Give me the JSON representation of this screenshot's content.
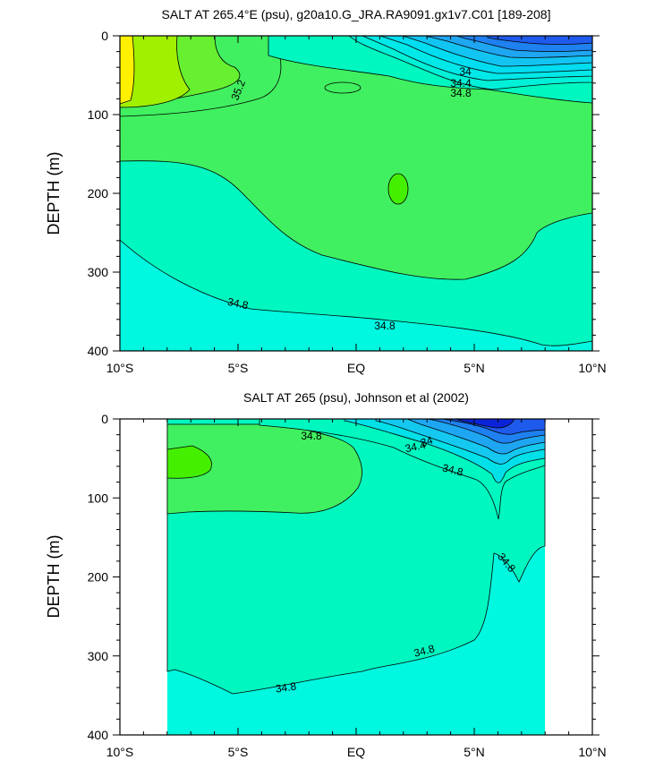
{
  "chart_data": [
    {
      "type": "heatmap",
      "subtype": "filled-contour",
      "title": "SALT AT 265.4°E (psu), g20a10.G_JRA.RA9091.gx1v7.C01 [189-208]",
      "ylabel": "DEPTH (m)",
      "xlim": [
        -10,
        10
      ],
      "ylim": [
        400,
        0
      ],
      "xticks": [
        -10,
        -5,
        0,
        5,
        10
      ],
      "xtick_labels": [
        "10°S",
        "5°S",
        "EQ",
        "5°N",
        "10°N"
      ],
      "yticks": [
        0,
        100,
        200,
        300,
        400
      ],
      "ytick_labels": [
        "0",
        "100",
        "200",
        "300",
        "400"
      ],
      "contour_labels": [
        "35.2",
        "34",
        "34.4",
        "34.8",
        "34.8",
        "34.8"
      ],
      "colors": [
        "#0a1ed6",
        "#1f57ee",
        "#1f8cf2",
        "#14b8f0",
        "#00dfe8",
        "#00f7e0",
        "#00f7c0",
        "#40f060",
        "#a0f000",
        "#fff000"
      ]
    },
    {
      "type": "heatmap",
      "subtype": "filled-contour",
      "title": "SALT AT 265 (psu), Johnson et al (2002)",
      "ylabel": "DEPTH (m)",
      "xlim": [
        -10,
        10
      ],
      "ylim": [
        400,
        0
      ],
      "xticks": [
        -10,
        -5,
        0,
        5,
        10
      ],
      "xtick_labels": [
        "10°S",
        "5°S",
        "EQ",
        "5°N",
        "10°N"
      ],
      "yticks": [
        0,
        100,
        200,
        300,
        400
      ],
      "ytick_labels": [
        "0",
        "100",
        "200",
        "300",
        "400"
      ],
      "contour_labels": [
        "34.8",
        "34",
        "34.4",
        "34.8",
        "34.8",
        "34.8",
        "34.8"
      ],
      "colors": [
        "#0a1ed6",
        "#1f57ee",
        "#1f8cf2",
        "#14b8f0",
        "#00dfe8",
        "#00f7e0",
        "#00f7c0",
        "#40f060"
      ]
    }
  ]
}
